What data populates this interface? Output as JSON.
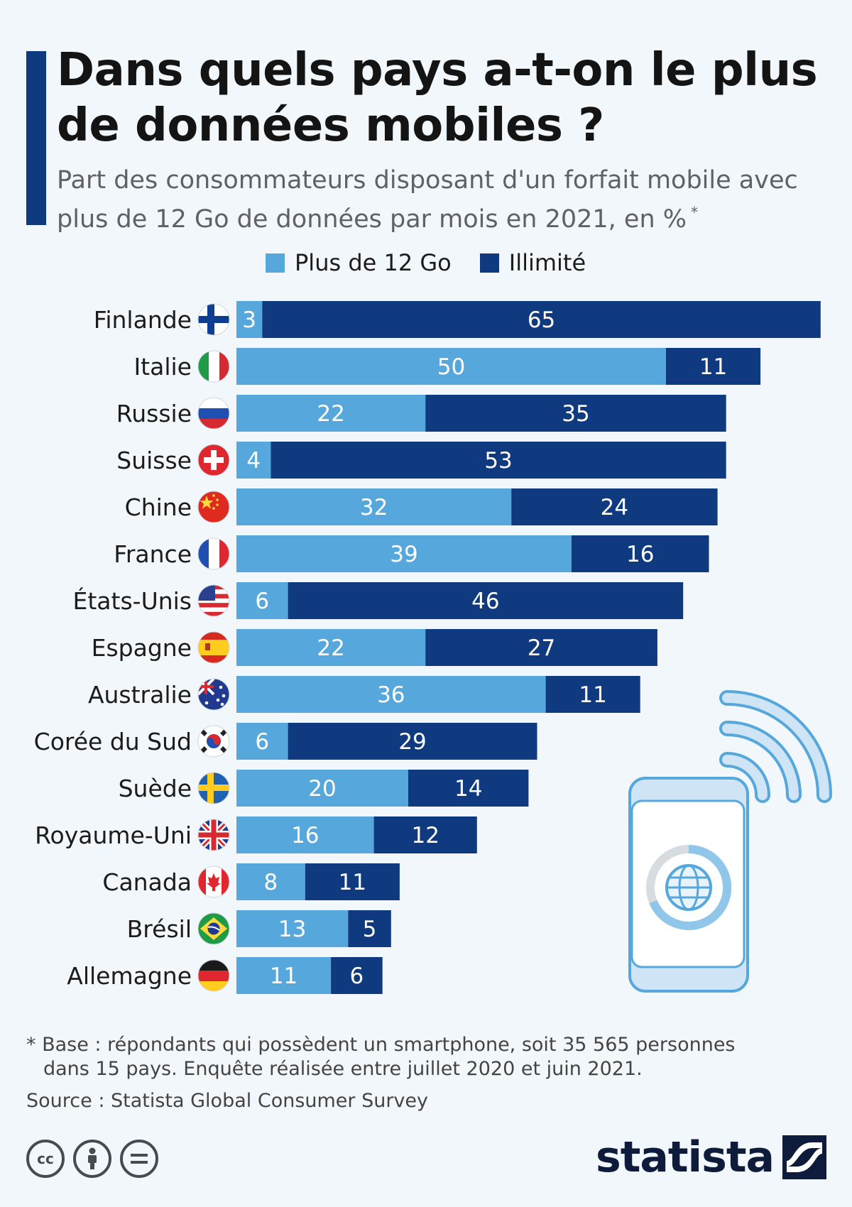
{
  "title": "Dans quels pays a-t-on le plus de données mobiles ?",
  "subtitle": "Part des consommateurs disposant d'un forfait mobile avec plus de 12 Go de données par mois en 2021, en %",
  "subtitle_mark": "*",
  "legend": [
    {
      "label": "Plus de 12 Go",
      "color": "#55a7dc"
    },
    {
      "label": "Illimité",
      "color": "#103a7f"
    }
  ],
  "chart_data": {
    "type": "bar",
    "orientation": "horizontal",
    "stacked": true,
    "categories": [
      "Finlande",
      "Italie",
      "Russie",
      "Suisse",
      "Chine",
      "France",
      "États-Unis",
      "Espagne",
      "Australie",
      "Corée du Sud",
      "Suède",
      "Royaume-Uni",
      "Canada",
      "Brésil",
      "Allemagne"
    ],
    "series": [
      {
        "name": "Plus de 12 Go",
        "color": "#55a7dc",
        "values": [
          3,
          50,
          22,
          4,
          32,
          39,
          6,
          22,
          36,
          6,
          20,
          16,
          8,
          13,
          11
        ]
      },
      {
        "name": "Illimité",
        "color": "#103a7f",
        "values": [
          65,
          11,
          35,
          53,
          24,
          16,
          46,
          27,
          11,
          29,
          14,
          12,
          11,
          5,
          6
        ]
      }
    ],
    "flags": [
      "flag-finland-icon",
      "flag-italy-icon",
      "flag-russia-icon",
      "flag-switzerland-icon",
      "flag-china-icon",
      "flag-france-icon",
      "flag-usa-icon",
      "flag-spain-icon",
      "flag-australia-icon",
      "flag-south-korea-icon",
      "flag-sweden-icon",
      "flag-uk-icon",
      "flag-canada-icon",
      "flag-brazil-icon",
      "flag-germany-icon"
    ],
    "legend_position": "top",
    "grid": false
  },
  "footnote": {
    "line1": "* Base : répondants qui possèdent un smartphone, soit 35 565 personnes",
    "line2": "dans 15 pays. Enquête réalisée entre juillet 2020 et juin 2021."
  },
  "source": "Source : Statista Global Consumer Survey",
  "license_icons": [
    "cc",
    "by",
    "nd"
  ],
  "brand": "statista"
}
